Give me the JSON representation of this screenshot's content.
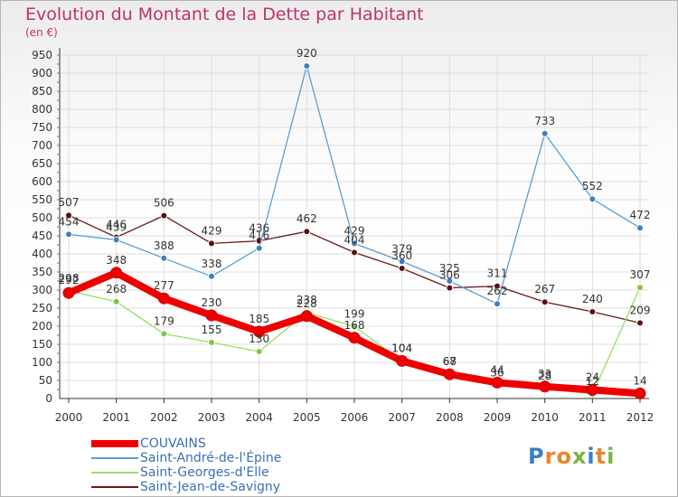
{
  "chart_data": {
    "type": "line",
    "title": "Evolution du Montant de la Dette par Habitant",
    "subtitle": "(en €)",
    "xlabel": "",
    "ylabel": "",
    "ylim": [
      0,
      950
    ],
    "y_ticks": [
      0,
      50,
      100,
      150,
      200,
      250,
      300,
      350,
      400,
      450,
      500,
      550,
      600,
      650,
      700,
      750,
      800,
      850,
      900,
      950
    ],
    "categories": [
      "2000",
      "2001",
      "2002",
      "2003",
      "2004",
      "2005",
      "2006",
      "2007",
      "2008",
      "2009",
      "2010",
      "2011",
      "2012"
    ],
    "series": [
      {
        "name": "Saint-Jean-de-Savigny",
        "color": "#6b1a1a",
        "dot": "#5a1010",
        "values": [
          507,
          446,
          506,
          429,
          436,
          462,
          404,
          360,
          306,
          311,
          267,
          240,
          209
        ]
      },
      {
        "name": "Saint-André-de-l'Épine",
        "color": "#5a9fd4",
        "dot": "#3d7fc0",
        "values": [
          454,
          439,
          388,
          338,
          416,
          920,
          429,
          379,
          325,
          262,
          733,
          552,
          472
        ]
      },
      {
        "name": "Saint-Georges-d'Elle",
        "color": "#99dd66",
        "dot": "#7cc943",
        "values": [
          298,
          268,
          179,
          155,
          130,
          238,
          199,
          104,
          68,
          36,
          28,
          12,
          307
        ]
      },
      {
        "name": "COUVAINS",
        "color": "#ee0000",
        "dot": "#ee0000",
        "values": [
          292,
          348,
          277,
          230,
          185,
          228,
          168,
          104,
          67,
          44,
          33,
          24,
          14
        ]
      }
    ]
  },
  "legend": {
    "items": [
      {
        "label": "COUVAINS",
        "color": "#ee0000"
      },
      {
        "label": "Saint-André-de-l'Épine",
        "color": "#5a9fd4"
      },
      {
        "label": "Saint-Georges-d'Elle",
        "color": "#99dd66"
      },
      {
        "label": "Saint-Jean-de-Savigny",
        "color": "#6b1a1a"
      }
    ]
  },
  "logo": {
    "text": "Proxiti"
  }
}
